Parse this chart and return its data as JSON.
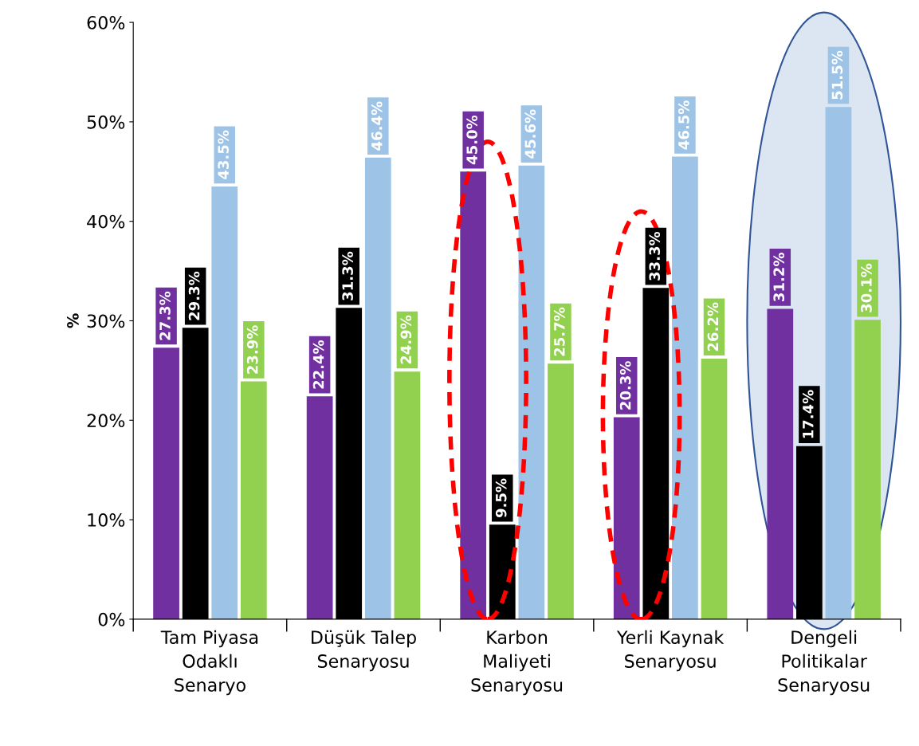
{
  "chart_data": {
    "type": "bar",
    "ylabel": "%",
    "categories": [
      "Tam Piyasa Odaklı Senaryo",
      "Düşük Talep Senaryosu",
      "Karbon Maliyeti Senaryosu",
      "Yerli Kaynak Senaryosu",
      "Dengeli Politikalar Senaryosu"
    ],
    "series": [
      {
        "color": "#7030a0",
        "values": [
          27.3,
          22.4,
          45.0,
          20.3,
          31.2
        ],
        "value_labels": [
          "27.3%",
          "22.4%",
          "45.0%",
          "20.3%",
          "31.2%"
        ]
      },
      {
        "color": "#000000",
        "values": [
          29.3,
          31.3,
          9.5,
          33.3,
          17.4
        ],
        "value_labels": [
          "29.3%",
          "31.3%",
          "9.5%",
          "33.3%",
          "17.4%"
        ]
      },
      {
        "color": "#9dc3e6",
        "values": [
          43.5,
          46.4,
          45.6,
          46.5,
          51.5
        ],
        "value_labels": [
          "43.5%",
          "46.4%",
          "45.6%",
          "46.5%",
          "51.5%"
        ]
      },
      {
        "color": "#92d050",
        "values": [
          23.9,
          24.9,
          25.7,
          26.2,
          30.1
        ],
        "value_labels": [
          "23.9%",
          "24.9%",
          "25.7%",
          "26.2%",
          "30.1%"
        ]
      }
    ],
    "ylim": [
      0,
      60
    ],
    "yticks": [
      {
        "value": 0,
        "label": "0%"
      },
      {
        "value": 10,
        "label": "10%"
      },
      {
        "value": 20,
        "label": "20%"
      },
      {
        "value": 30,
        "label": "30%"
      },
      {
        "value": 40,
        "label": "40%"
      },
      {
        "value": 50,
        "label": "50%"
      },
      {
        "value": 60,
        "label": "60%"
      }
    ],
    "grid": false,
    "legend": false
  }
}
